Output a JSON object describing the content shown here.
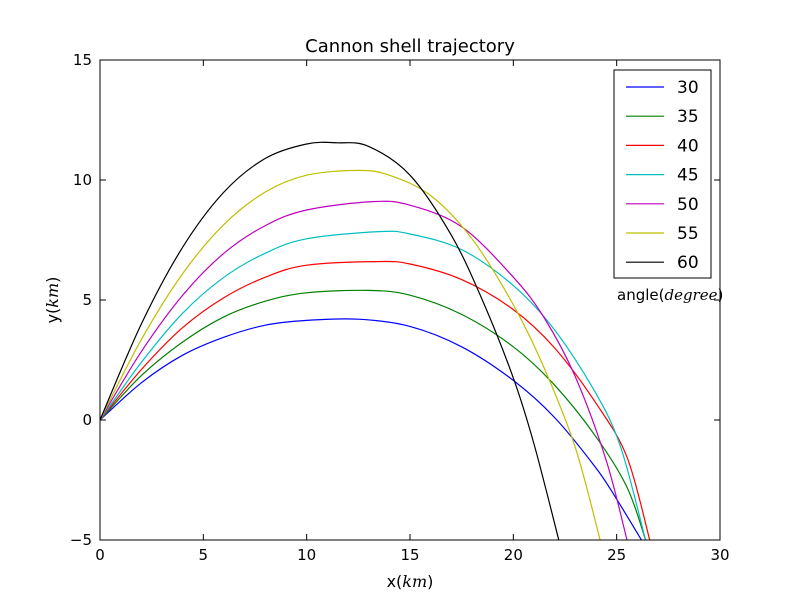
{
  "chart_data": {
    "type": "line",
    "title": "Cannon shell trajectory",
    "xlabel": {
      "prefix": "x(",
      "math": "km",
      "suffix": ")"
    },
    "ylabel": {
      "prefix": "y(",
      "math": "km",
      "suffix": ")"
    },
    "xlim": [
      0,
      30
    ],
    "ylim": [
      -5,
      15
    ],
    "xticks": [
      0,
      5,
      10,
      15,
      20,
      25,
      30
    ],
    "xtick_labels": [
      "0",
      "5",
      "10",
      "15",
      "20",
      "25",
      "30"
    ],
    "yticks": [
      -5,
      0,
      5,
      10,
      15
    ],
    "ytick_labels": [
      "−5",
      "0",
      "5",
      "10",
      "15"
    ],
    "grid": false,
    "legend": {
      "placement": "top-right",
      "title": {
        "prefix": "angle(",
        "math": "degree",
        "suffix": ")"
      }
    },
    "series": [
      {
        "name": "30",
        "color": "#0000ff",
        "x": [
          0,
          2,
          4,
          6,
          8,
          10,
          12.5,
          15,
          17.5,
          20,
          22,
          24,
          25,
          26.2
        ],
        "y": [
          0,
          1.55,
          2.7,
          3.45,
          3.95,
          4.15,
          4.2,
          3.9,
          3.05,
          1.65,
          0.1,
          -2.0,
          -3.3,
          -5
        ]
      },
      {
        "name": "35",
        "color": "#008000",
        "x": [
          0,
          2,
          4,
          6,
          8,
          10,
          13,
          15,
          17.5,
          20,
          22,
          24,
          25.5,
          26.4
        ],
        "y": [
          0,
          1.85,
          3.25,
          4.3,
          4.95,
          5.3,
          5.4,
          5.2,
          4.4,
          3.05,
          1.45,
          -0.7,
          -2.8,
          -5
        ]
      },
      {
        "name": "40",
        "color": "#ff0000",
        "x": [
          0,
          2,
          4,
          6,
          8,
          10,
          13.4,
          15,
          17.5,
          20,
          22,
          24,
          25.5,
          26.6
        ],
        "y": [
          0,
          2.1,
          3.85,
          5.1,
          5.95,
          6.45,
          6.6,
          6.5,
          5.85,
          4.6,
          3.0,
          0.7,
          -1.55,
          -5
        ]
      },
      {
        "name": "45",
        "color": "#00bfbf",
        "x": [
          0,
          2,
          4,
          6,
          8,
          10,
          13.5,
          15,
          17.5,
          20,
          22,
          24,
          25.2,
          26.4
        ],
        "y": [
          0,
          2.4,
          4.45,
          5.95,
          6.95,
          7.55,
          7.85,
          7.75,
          7.1,
          5.6,
          3.75,
          1.1,
          -1.15,
          -5
        ]
      },
      {
        "name": "50",
        "color": "#bf00bf",
        "x": [
          0,
          2,
          4,
          6,
          8,
          10,
          13.2,
          15,
          17.5,
          20,
          21.5,
          23,
          24.5,
          25.5
        ],
        "y": [
          0,
          2.85,
          5.2,
          6.95,
          8.1,
          8.75,
          9.1,
          8.95,
          8.05,
          5.95,
          4.25,
          1.8,
          -1.7,
          -5
        ]
      },
      {
        "name": "55",
        "color": "#bfbf00",
        "x": [
          0,
          2,
          4,
          6,
          8,
          10,
          12.5,
          14,
          16,
          18,
          20,
          21.5,
          23,
          24.2
        ],
        "y": [
          0,
          3.35,
          6.1,
          8.15,
          9.5,
          10.2,
          10.4,
          10.2,
          9.35,
          7.55,
          4.8,
          2.15,
          -1.15,
          -5
        ]
      },
      {
        "name": "60",
        "color": "#000000",
        "x": [
          0,
          2,
          4,
          6,
          8,
          10,
          11.5,
          13,
          15,
          17,
          18.5,
          20,
          21,
          22.2
        ],
        "y": [
          0,
          4.0,
          7.2,
          9.5,
          10.9,
          11.5,
          11.55,
          11.4,
          10.2,
          7.7,
          5.0,
          1.75,
          -1.0,
          -5
        ]
      }
    ]
  }
}
